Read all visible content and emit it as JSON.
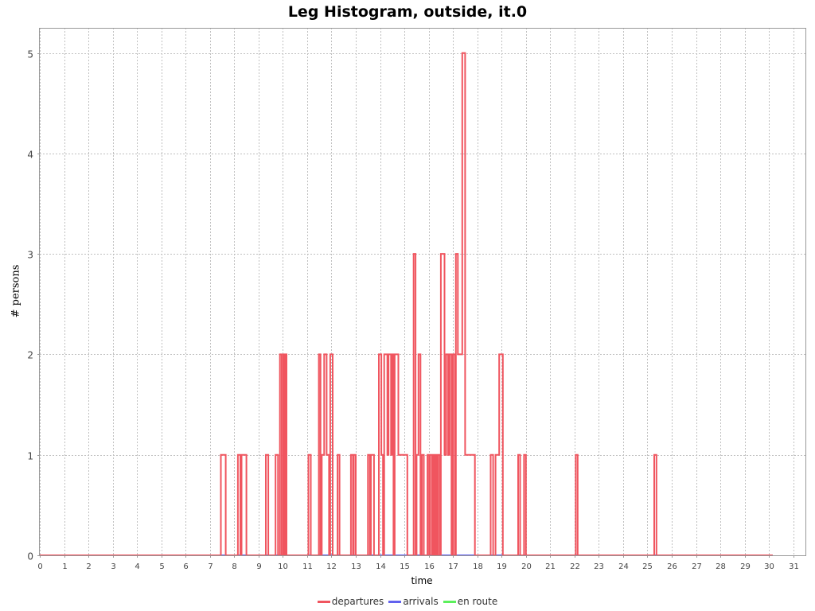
{
  "chart_data": {
    "type": "line",
    "title": "Leg Histogram, outside, it.0",
    "xlabel": "time",
    "ylabel": "# persons",
    "xlim": [
      0,
      31.5
    ],
    "ylim": [
      0,
      5.25
    ],
    "x_ticks": [
      "0",
      "1",
      "2",
      "3",
      "4",
      "5",
      "6",
      "7",
      "8",
      "9",
      "10",
      "11",
      "12",
      "13",
      "14",
      "15",
      "16",
      "17",
      "18",
      "19",
      "20",
      "21",
      "22",
      "23",
      "24",
      "25",
      "26",
      "27",
      "28",
      "29",
      "30",
      "31"
    ],
    "y_ticks": [
      "0",
      "1",
      "2",
      "3",
      "4",
      "5"
    ],
    "grid": true,
    "legend_position": "bottom",
    "step": true,
    "series": [
      {
        "name": "departures",
        "color": "#f0555f",
        "points": [
          [
            0,
            0
          ],
          [
            7.45,
            0
          ],
          [
            7.45,
            1
          ],
          [
            7.65,
            1
          ],
          [
            7.65,
            0
          ],
          [
            8.15,
            0
          ],
          [
            8.15,
            1
          ],
          [
            8.25,
            1
          ],
          [
            8.25,
            0
          ],
          [
            8.3,
            0
          ],
          [
            8.3,
            1
          ],
          [
            8.5,
            1
          ],
          [
            8.5,
            0
          ],
          [
            9.3,
            0
          ],
          [
            9.3,
            1
          ],
          [
            9.4,
            1
          ],
          [
            9.4,
            0
          ],
          [
            9.7,
            0
          ],
          [
            9.7,
            1
          ],
          [
            9.8,
            1
          ],
          [
            9.8,
            0
          ],
          [
            9.88,
            0
          ],
          [
            9.88,
            2
          ],
          [
            9.95,
            2
          ],
          [
            9.95,
            0
          ],
          [
            10.02,
            0
          ],
          [
            10.02,
            2
          ],
          [
            10.08,
            2
          ],
          [
            10.08,
            0
          ],
          [
            10.1,
            0
          ],
          [
            10.1,
            2
          ],
          [
            10.15,
            2
          ],
          [
            10.15,
            0
          ],
          [
            11.05,
            0
          ],
          [
            11.05,
            1
          ],
          [
            11.15,
            1
          ],
          [
            11.15,
            0
          ],
          [
            11.48,
            0
          ],
          [
            11.48,
            2
          ],
          [
            11.55,
            2
          ],
          [
            11.55,
            0
          ],
          [
            11.6,
            0
          ],
          [
            11.6,
            1
          ],
          [
            11.7,
            1
          ],
          [
            11.7,
            2
          ],
          [
            11.8,
            2
          ],
          [
            11.8,
            1
          ],
          [
            11.9,
            1
          ],
          [
            11.9,
            0
          ],
          [
            11.95,
            0
          ],
          [
            11.95,
            2
          ],
          [
            12.05,
            2
          ],
          [
            12.05,
            0
          ],
          [
            12.25,
            0
          ],
          [
            12.25,
            1
          ],
          [
            12.33,
            1
          ],
          [
            12.33,
            0
          ],
          [
            12.8,
            0
          ],
          [
            12.8,
            1
          ],
          [
            12.88,
            1
          ],
          [
            12.88,
            0
          ],
          [
            12.92,
            0
          ],
          [
            12.92,
            1
          ],
          [
            13.0,
            1
          ],
          [
            13.0,
            0
          ],
          [
            13.5,
            0
          ],
          [
            13.5,
            1
          ],
          [
            13.58,
            1
          ],
          [
            13.58,
            0
          ],
          [
            13.62,
            0
          ],
          [
            13.62,
            1
          ],
          [
            13.75,
            1
          ],
          [
            13.75,
            0
          ],
          [
            13.95,
            0
          ],
          [
            13.95,
            2
          ],
          [
            14.05,
            2
          ],
          [
            14.05,
            1
          ],
          [
            14.12,
            1
          ],
          [
            14.12,
            0
          ],
          [
            14.17,
            0
          ],
          [
            14.17,
            2
          ],
          [
            14.3,
            2
          ],
          [
            14.3,
            1
          ],
          [
            14.35,
            1
          ],
          [
            14.35,
            2
          ],
          [
            14.45,
            2
          ],
          [
            14.45,
            1
          ],
          [
            14.5,
            1
          ],
          [
            14.5,
            2
          ],
          [
            14.55,
            2
          ],
          [
            14.55,
            0
          ],
          [
            14.6,
            0
          ],
          [
            14.6,
            2
          ],
          [
            14.75,
            2
          ],
          [
            14.75,
            1
          ],
          [
            15.12,
            1
          ],
          [
            15.12,
            0
          ],
          [
            15.38,
            0
          ],
          [
            15.38,
            3
          ],
          [
            15.46,
            3
          ],
          [
            15.46,
            0
          ],
          [
            15.5,
            0
          ],
          [
            15.5,
            1
          ],
          [
            15.58,
            1
          ],
          [
            15.58,
            2
          ],
          [
            15.66,
            2
          ],
          [
            15.66,
            0
          ],
          [
            15.72,
            0
          ],
          [
            15.72,
            1
          ],
          [
            15.8,
            1
          ],
          [
            15.8,
            0
          ],
          [
            15.95,
            0
          ],
          [
            15.95,
            1
          ],
          [
            16.02,
            1
          ],
          [
            16.02,
            0
          ],
          [
            16.06,
            0
          ],
          [
            16.06,
            1
          ],
          [
            16.14,
            1
          ],
          [
            16.14,
            0
          ],
          [
            16.18,
            0
          ],
          [
            16.18,
            1
          ],
          [
            16.24,
            1
          ],
          [
            16.24,
            0
          ],
          [
            16.28,
            0
          ],
          [
            16.28,
            1
          ],
          [
            16.34,
            1
          ],
          [
            16.34,
            0
          ],
          [
            16.38,
            0
          ],
          [
            16.38,
            1
          ],
          [
            16.45,
            1
          ],
          [
            16.45,
            0
          ],
          [
            16.5,
            0
          ],
          [
            16.5,
            3
          ],
          [
            16.65,
            3
          ],
          [
            16.65,
            1
          ],
          [
            16.72,
            1
          ],
          [
            16.72,
            2
          ],
          [
            16.8,
            2
          ],
          [
            16.8,
            1
          ],
          [
            16.86,
            1
          ],
          [
            16.86,
            2
          ],
          [
            16.94,
            2
          ],
          [
            16.94,
            0
          ],
          [
            17.0,
            0
          ],
          [
            17.0,
            2
          ],
          [
            17.08,
            2
          ],
          [
            17.08,
            0
          ],
          [
            17.12,
            0
          ],
          [
            17.12,
            3
          ],
          [
            17.2,
            3
          ],
          [
            17.2,
            2
          ],
          [
            17.38,
            2
          ],
          [
            17.38,
            5
          ],
          [
            17.5,
            5
          ],
          [
            17.5,
            1
          ],
          [
            17.9,
            1
          ],
          [
            17.9,
            0
          ],
          [
            18.55,
            0
          ],
          [
            18.55,
            1
          ],
          [
            18.65,
            1
          ],
          [
            18.65,
            0
          ],
          [
            18.75,
            0
          ],
          [
            18.75,
            1
          ],
          [
            18.9,
            1
          ],
          [
            18.9,
            2
          ],
          [
            19.05,
            2
          ],
          [
            19.05,
            0
          ],
          [
            19.68,
            0
          ],
          [
            19.68,
            1
          ],
          [
            19.76,
            1
          ],
          [
            19.76,
            0
          ],
          [
            19.92,
            0
          ],
          [
            19.92,
            1
          ],
          [
            20.0,
            1
          ],
          [
            20.0,
            0
          ],
          [
            22.05,
            0
          ],
          [
            22.05,
            1
          ],
          [
            22.13,
            1
          ],
          [
            22.13,
            0
          ],
          [
            25.28,
            0
          ],
          [
            25.28,
            1
          ],
          [
            25.37,
            1
          ],
          [
            25.37,
            0
          ],
          [
            30.15,
            0
          ]
        ]
      },
      {
        "name": "arrivals",
        "color": "#6262ee",
        "points": [
          [
            0,
            0
          ],
          [
            30.15,
            0
          ]
        ]
      },
      {
        "name": "en route",
        "color": "#5cf05c",
        "points": [
          [
            0,
            0
          ],
          [
            30.15,
            0
          ]
        ]
      }
    ]
  }
}
